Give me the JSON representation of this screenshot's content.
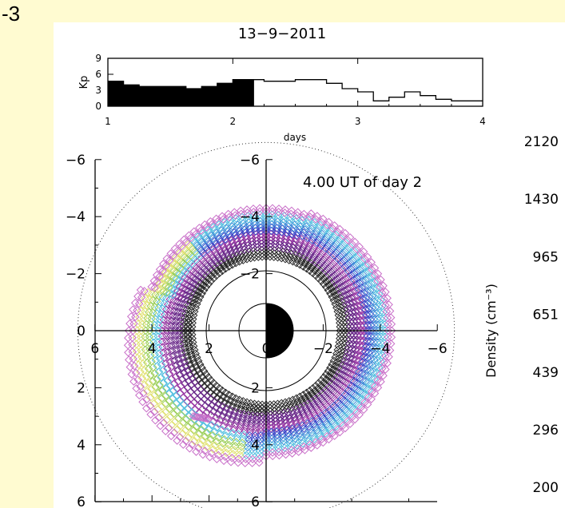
{
  "panel_label": "-3",
  "chart_data": [
    {
      "type": "bar",
      "title": "13−9−2011",
      "xlabel": "days",
      "ylabel": "Kp",
      "xlim": [
        1,
        4
      ],
      "ylim": [
        0,
        9
      ],
      "x_ticks": [
        "1",
        "2",
        "3",
        "4"
      ],
      "y_ticks": [
        "0",
        "3",
        "6",
        "9"
      ],
      "step_width_days": 0.125,
      "filled_until_day": 2.1667,
      "kp": [
        4.7,
        4.0,
        3.7,
        3.7,
        3.7,
        3.3,
        3.7,
        4.3,
        5.0,
        5.0,
        4.7,
        4.7,
        5.0,
        5.0,
        4.3,
        3.3,
        2.7,
        1.0,
        1.7,
        2.7,
        2.0,
        1.3,
        1.0,
        1.0
      ]
    },
    {
      "type": "scatter",
      "annotation": "4.00 UT of day 2",
      "x_ticks_left": [
        "6",
        "4",
        "2",
        "0"
      ],
      "x_ticks_right": [
        "0",
        "−2",
        "−4",
        "−6"
      ],
      "y_ticks_left": [
        "−6",
        "−4",
        "−2",
        "0",
        "2",
        "4",
        "6"
      ],
      "y_ticks_axis": [
        "−6",
        "−4",
        "−2",
        "0",
        "2",
        "4",
        "6"
      ],
      "xlim": [
        6,
        -6
      ],
      "ylim": [
        -6,
        6
      ],
      "dotted_circle_radii": [
        3.5,
        6.6
      ],
      "earth_radius": 1.0,
      "inner_white_radius": 2.5,
      "plasmasphere_outer_radius": 4.4,
      "colorbar": {
        "label": "Density (cm⁻³)",
        "ticks": [
          "2120",
          "1430",
          "965",
          "651",
          "439",
          "296",
          "200"
        ],
        "colors": [
          "#2a2a2a",
          "#6a2a8a",
          "#9a3aa6",
          "#3a46c8",
          "#3e8ad8",
          "#56c0e0",
          "#7ad0c0",
          "#9ccf5a",
          "#e0e070",
          "#c86ec8"
        ]
      }
    }
  ]
}
